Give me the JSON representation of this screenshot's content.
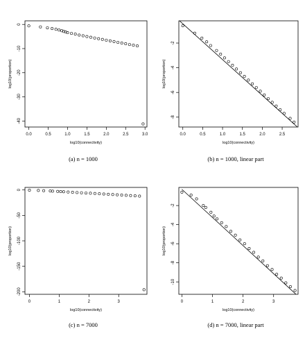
{
  "chart_data": [
    {
      "type": "scatter",
      "caption": "(a) n = 1000",
      "xlabel": "log10(connectivity)",
      "ylabel": "log10(proportion)",
      "xlim": [
        -0.1,
        3.05
      ],
      "ylim": [
        -42.5,
        1.5
      ],
      "xticks": [
        0.0,
        0.5,
        1.0,
        1.5,
        2.0,
        2.5,
        3.0
      ],
      "xtick_labels": [
        "0.0",
        "0.5",
        "1.0",
        "1.5",
        "2.0",
        "2.5",
        "3.0"
      ],
      "yticks": [
        0,
        -10,
        -20,
        -30,
        -40
      ],
      "ytick_labels": [
        "0",
        "-10",
        "-20",
        "-30",
        "-40"
      ],
      "points": [
        {
          "x": 0.0,
          "y": -0.6
        },
        {
          "x": 0.3,
          "y": -1.0
        },
        {
          "x": 0.48,
          "y": -1.4
        },
        {
          "x": 0.6,
          "y": -1.7
        },
        {
          "x": 0.7,
          "y": -2.0
        },
        {
          "x": 0.78,
          "y": -2.3
        },
        {
          "x": 0.85,
          "y": -2.6
        },
        {
          "x": 0.9,
          "y": -2.9
        },
        {
          "x": 0.95,
          "y": -3.1
        },
        {
          "x": 1.0,
          "y": -3.4
        },
        {
          "x": 1.1,
          "y": -3.7
        },
        {
          "x": 1.2,
          "y": -4.0
        },
        {
          "x": 1.3,
          "y": -4.4
        },
        {
          "x": 1.4,
          "y": -4.7
        },
        {
          "x": 1.5,
          "y": -5.0
        },
        {
          "x": 1.6,
          "y": -5.3
        },
        {
          "x": 1.7,
          "y": -5.6
        },
        {
          "x": 1.8,
          "y": -5.9
        },
        {
          "x": 1.9,
          "y": -6.2
        },
        {
          "x": 2.0,
          "y": -6.5
        },
        {
          "x": 2.1,
          "y": -6.8
        },
        {
          "x": 2.2,
          "y": -7.1
        },
        {
          "x": 2.3,
          "y": -7.4
        },
        {
          "x": 2.4,
          "y": -7.7
        },
        {
          "x": 2.5,
          "y": -8.0
        },
        {
          "x": 2.6,
          "y": -8.3
        },
        {
          "x": 2.7,
          "y": -8.6
        },
        {
          "x": 2.8,
          "y": -8.9
        },
        {
          "x": 2.95,
          "y": -41.2
        }
      ]
    },
    {
      "type": "scatter",
      "caption": "(b) n = 1000, linear part",
      "xlabel": "log10(connectivity)",
      "ylabel": "log10(proportion)",
      "xlim": [
        -0.1,
        2.9
      ],
      "ylim": [
        -8.8,
        -0.2
      ],
      "xticks": [
        0.0,
        0.5,
        1.0,
        1.5,
        2.0,
        2.5
      ],
      "xtick_labels": [
        "0.0",
        "0.5",
        "1.0",
        "1.5",
        "2.0",
        "2.5"
      ],
      "yticks": [
        -2,
        -4,
        -6,
        -8
      ],
      "ytick_labels": [
        "-2",
        "-4",
        "-6",
        "-8"
      ],
      "fit_line": {
        "x": [
          -0.1,
          2.9
        ],
        "y": [
          -0.15,
          -8.85
        ]
      },
      "points": [
        {
          "x": 0.0,
          "y": -0.6
        },
        {
          "x": 0.3,
          "y": -1.2
        },
        {
          "x": 0.48,
          "y": -1.6
        },
        {
          "x": 0.6,
          "y": -1.9
        },
        {
          "x": 0.7,
          "y": -2.2
        },
        {
          "x": 0.85,
          "y": -2.6
        },
        {
          "x": 0.95,
          "y": -2.9
        },
        {
          "x": 1.05,
          "y": -3.2
        },
        {
          "x": 1.15,
          "y": -3.5
        },
        {
          "x": 1.25,
          "y": -3.8
        },
        {
          "x": 1.35,
          "y": -4.1
        },
        {
          "x": 1.45,
          "y": -4.4
        },
        {
          "x": 1.55,
          "y": -4.7
        },
        {
          "x": 1.65,
          "y": -5.0
        },
        {
          "x": 1.75,
          "y": -5.3
        },
        {
          "x": 1.85,
          "y": -5.6
        },
        {
          "x": 1.95,
          "y": -5.9
        },
        {
          "x": 2.05,
          "y": -6.2
        },
        {
          "x": 2.15,
          "y": -6.5
        },
        {
          "x": 2.25,
          "y": -6.8
        },
        {
          "x": 2.35,
          "y": -7.1
        },
        {
          "x": 2.45,
          "y": -7.4
        },
        {
          "x": 2.55,
          "y": -7.7
        },
        {
          "x": 2.7,
          "y": -8.1
        },
        {
          "x": 2.8,
          "y": -8.4
        }
      ]
    },
    {
      "type": "scatter",
      "caption": "(c) n = 7000",
      "xlabel": "log10(connectivity)",
      "ylabel": "log10(proportion)",
      "xlim": [
        -0.15,
        3.95
      ],
      "ylim": [
        -205,
        5
      ],
      "xticks": [
        0,
        1,
        2,
        3
      ],
      "xtick_labels": [
        "0",
        "1",
        "2",
        "3"
      ],
      "yticks": [
        0,
        -50,
        -100,
        -150,
        -200
      ],
      "ytick_labels": [
        "0",
        "-50",
        "-100",
        "-150",
        "-200"
      ],
      "points": [
        {
          "x": 0.0,
          "y": -0.5
        },
        {
          "x": 0.3,
          "y": -1.0
        },
        {
          "x": 0.48,
          "y": -1.5
        },
        {
          "x": 0.7,
          "y": -2.0
        },
        {
          "x": 0.78,
          "y": -2.3
        },
        {
          "x": 0.95,
          "y": -2.8
        },
        {
          "x": 1.05,
          "y": -3.2
        },
        {
          "x": 1.15,
          "y": -3.6
        },
        {
          "x": 1.3,
          "y": -4.0
        },
        {
          "x": 1.45,
          "y": -4.5
        },
        {
          "x": 1.6,
          "y": -5.0
        },
        {
          "x": 1.75,
          "y": -5.5
        },
        {
          "x": 1.9,
          "y": -6.0
        },
        {
          "x": 2.05,
          "y": -6.5
        },
        {
          "x": 2.2,
          "y": -7.0
        },
        {
          "x": 2.35,
          "y": -7.5
        },
        {
          "x": 2.5,
          "y": -8.0
        },
        {
          "x": 2.65,
          "y": -8.5
        },
        {
          "x": 2.8,
          "y": -9.0
        },
        {
          "x": 2.95,
          "y": -9.5
        },
        {
          "x": 3.1,
          "y": -10.0
        },
        {
          "x": 3.25,
          "y": -10.5
        },
        {
          "x": 3.4,
          "y": -11.0
        },
        {
          "x": 3.55,
          "y": -11.5
        },
        {
          "x": 3.7,
          "y": -12.0
        },
        {
          "x": 3.85,
          "y": -196.0
        }
      ]
    },
    {
      "type": "scatter",
      "caption": "(d) n = 7000, linear part",
      "xlabel": "log10(connectivity)",
      "ylabel": "log10(proportion)",
      "xlim": [
        -0.1,
        3.8
      ],
      "ylim": [
        -11.3,
        -0.1
      ],
      "xticks": [
        0,
        1,
        2,
        3
      ],
      "xtick_labels": [
        "0",
        "1",
        "2",
        "3"
      ],
      "yticks": [
        -2,
        -4,
        -6,
        -8,
        -10
      ],
      "ytick_labels": [
        "-2",
        "-4",
        "-6",
        "-8",
        "-10"
      ],
      "fit_line": {
        "x": [
          0.0,
          3.8
        ],
        "y": [
          -0.3,
          -11.5
        ]
      },
      "points": [
        {
          "x": 0.0,
          "y": -0.6
        },
        {
          "x": 0.3,
          "y": -0.9
        },
        {
          "x": 0.48,
          "y": -1.3
        },
        {
          "x": 0.7,
          "y": -2.0
        },
        {
          "x": 0.78,
          "y": -2.2
        },
        {
          "x": 0.95,
          "y": -2.7
        },
        {
          "x": 1.05,
          "y": -3.1
        },
        {
          "x": 1.15,
          "y": -3.4
        },
        {
          "x": 1.3,
          "y": -3.8
        },
        {
          "x": 1.45,
          "y": -4.2
        },
        {
          "x": 1.6,
          "y": -4.7
        },
        {
          "x": 1.75,
          "y": -5.1
        },
        {
          "x": 1.9,
          "y": -5.6
        },
        {
          "x": 2.05,
          "y": -6.0
        },
        {
          "x": 2.2,
          "y": -6.5
        },
        {
          "x": 2.35,
          "y": -6.9
        },
        {
          "x": 2.5,
          "y": -7.4
        },
        {
          "x": 2.65,
          "y": -7.8
        },
        {
          "x": 2.8,
          "y": -8.3
        },
        {
          "x": 2.95,
          "y": -8.7
        },
        {
          "x": 3.1,
          "y": -9.2
        },
        {
          "x": 3.25,
          "y": -9.6
        },
        {
          "x": 3.4,
          "y": -10.1
        },
        {
          "x": 3.55,
          "y": -10.5
        },
        {
          "x": 3.7,
          "y": -10.9
        }
      ]
    }
  ]
}
